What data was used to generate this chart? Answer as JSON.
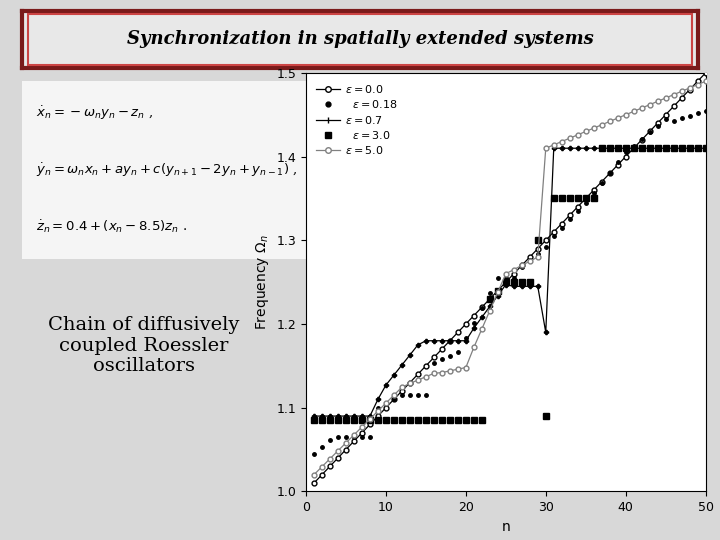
{
  "title": "Synchronization in spatially extended systems",
  "title_fontsize": 13,
  "background_color": "#d8d8d8",
  "title_box_color": "#e8e8e8",
  "title_box_edge_outer": "#7a1a1a",
  "title_box_edge_inner": "#cc4444",
  "equations": [
    "$\\dot{x}_n = -\\omega_n y_n - z_n$ ,",
    "$\\dot{y}_n = \\omega_n x_n + ay_n + c(y_{n+1} - 2y_n + y_{n-1})$ ,",
    "$\\dot{z}_n = 0.4 + (x_n - 8.5)z_n$ ."
  ],
  "eq_box_color": "#f5f5f5",
  "side_text": "Chain of diffusively\ncoupled Roessler\noscillators",
  "side_text_fontsize": 14,
  "plot_xlabel": "n",
  "plot_ylabel": "Frequency $\\Omega_n$",
  "plot_xlim": [
    0,
    50
  ],
  "plot_ylim": [
    1.0,
    1.5
  ],
  "plot_xticks": [
    0,
    10,
    20,
    30,
    40,
    50
  ],
  "plot_yticks": [
    1.0,
    1.1,
    1.2,
    1.3,
    1.4,
    1.5
  ],
  "n_max": 50
}
